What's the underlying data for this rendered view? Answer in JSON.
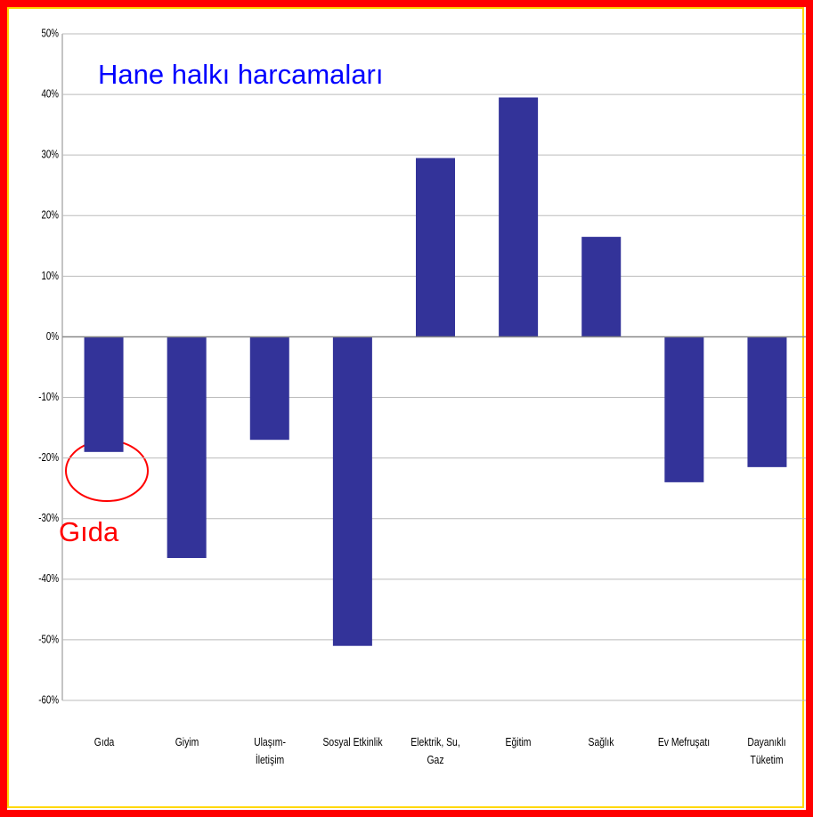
{
  "chart_data": {
    "type": "bar",
    "title": "Hane halkı harcamaları",
    "annotation": "Gıda",
    "categories": [
      "Gıda",
      "Giyim",
      "Ulaşım-\nİletişim",
      "Sosyal Etkinlik",
      "Elektrik, Su,\nGaz",
      "Eğitim",
      "Sağlık",
      "Ev Mefruşatı",
      "Dayanıklı\nTüketim"
    ],
    "values": [
      -19,
      -36.5,
      -17,
      -51,
      29.5,
      39.5,
      16.5,
      -24,
      -21.5
    ],
    "color": "#333399",
    "ylim": [
      -60,
      50
    ],
    "yticks": [
      {
        "value": -60,
        "label": "-60%"
      },
      {
        "value": -50,
        "label": "-50%"
      },
      {
        "value": -40,
        "label": "-40%"
      },
      {
        "value": -30,
        "label": "-30%"
      },
      {
        "value": -20,
        "label": "-20%"
      },
      {
        "value": -10,
        "label": "-10%"
      },
      {
        "value": 0,
        "label": "0%"
      },
      {
        "value": 10,
        "label": "10%"
      },
      {
        "value": 20,
        "label": "20%"
      },
      {
        "value": 30,
        "label": "30%"
      },
      {
        "value": 40,
        "label": "40%"
      },
      {
        "value": 50,
        "label": "50%"
      }
    ],
    "grid": true
  }
}
